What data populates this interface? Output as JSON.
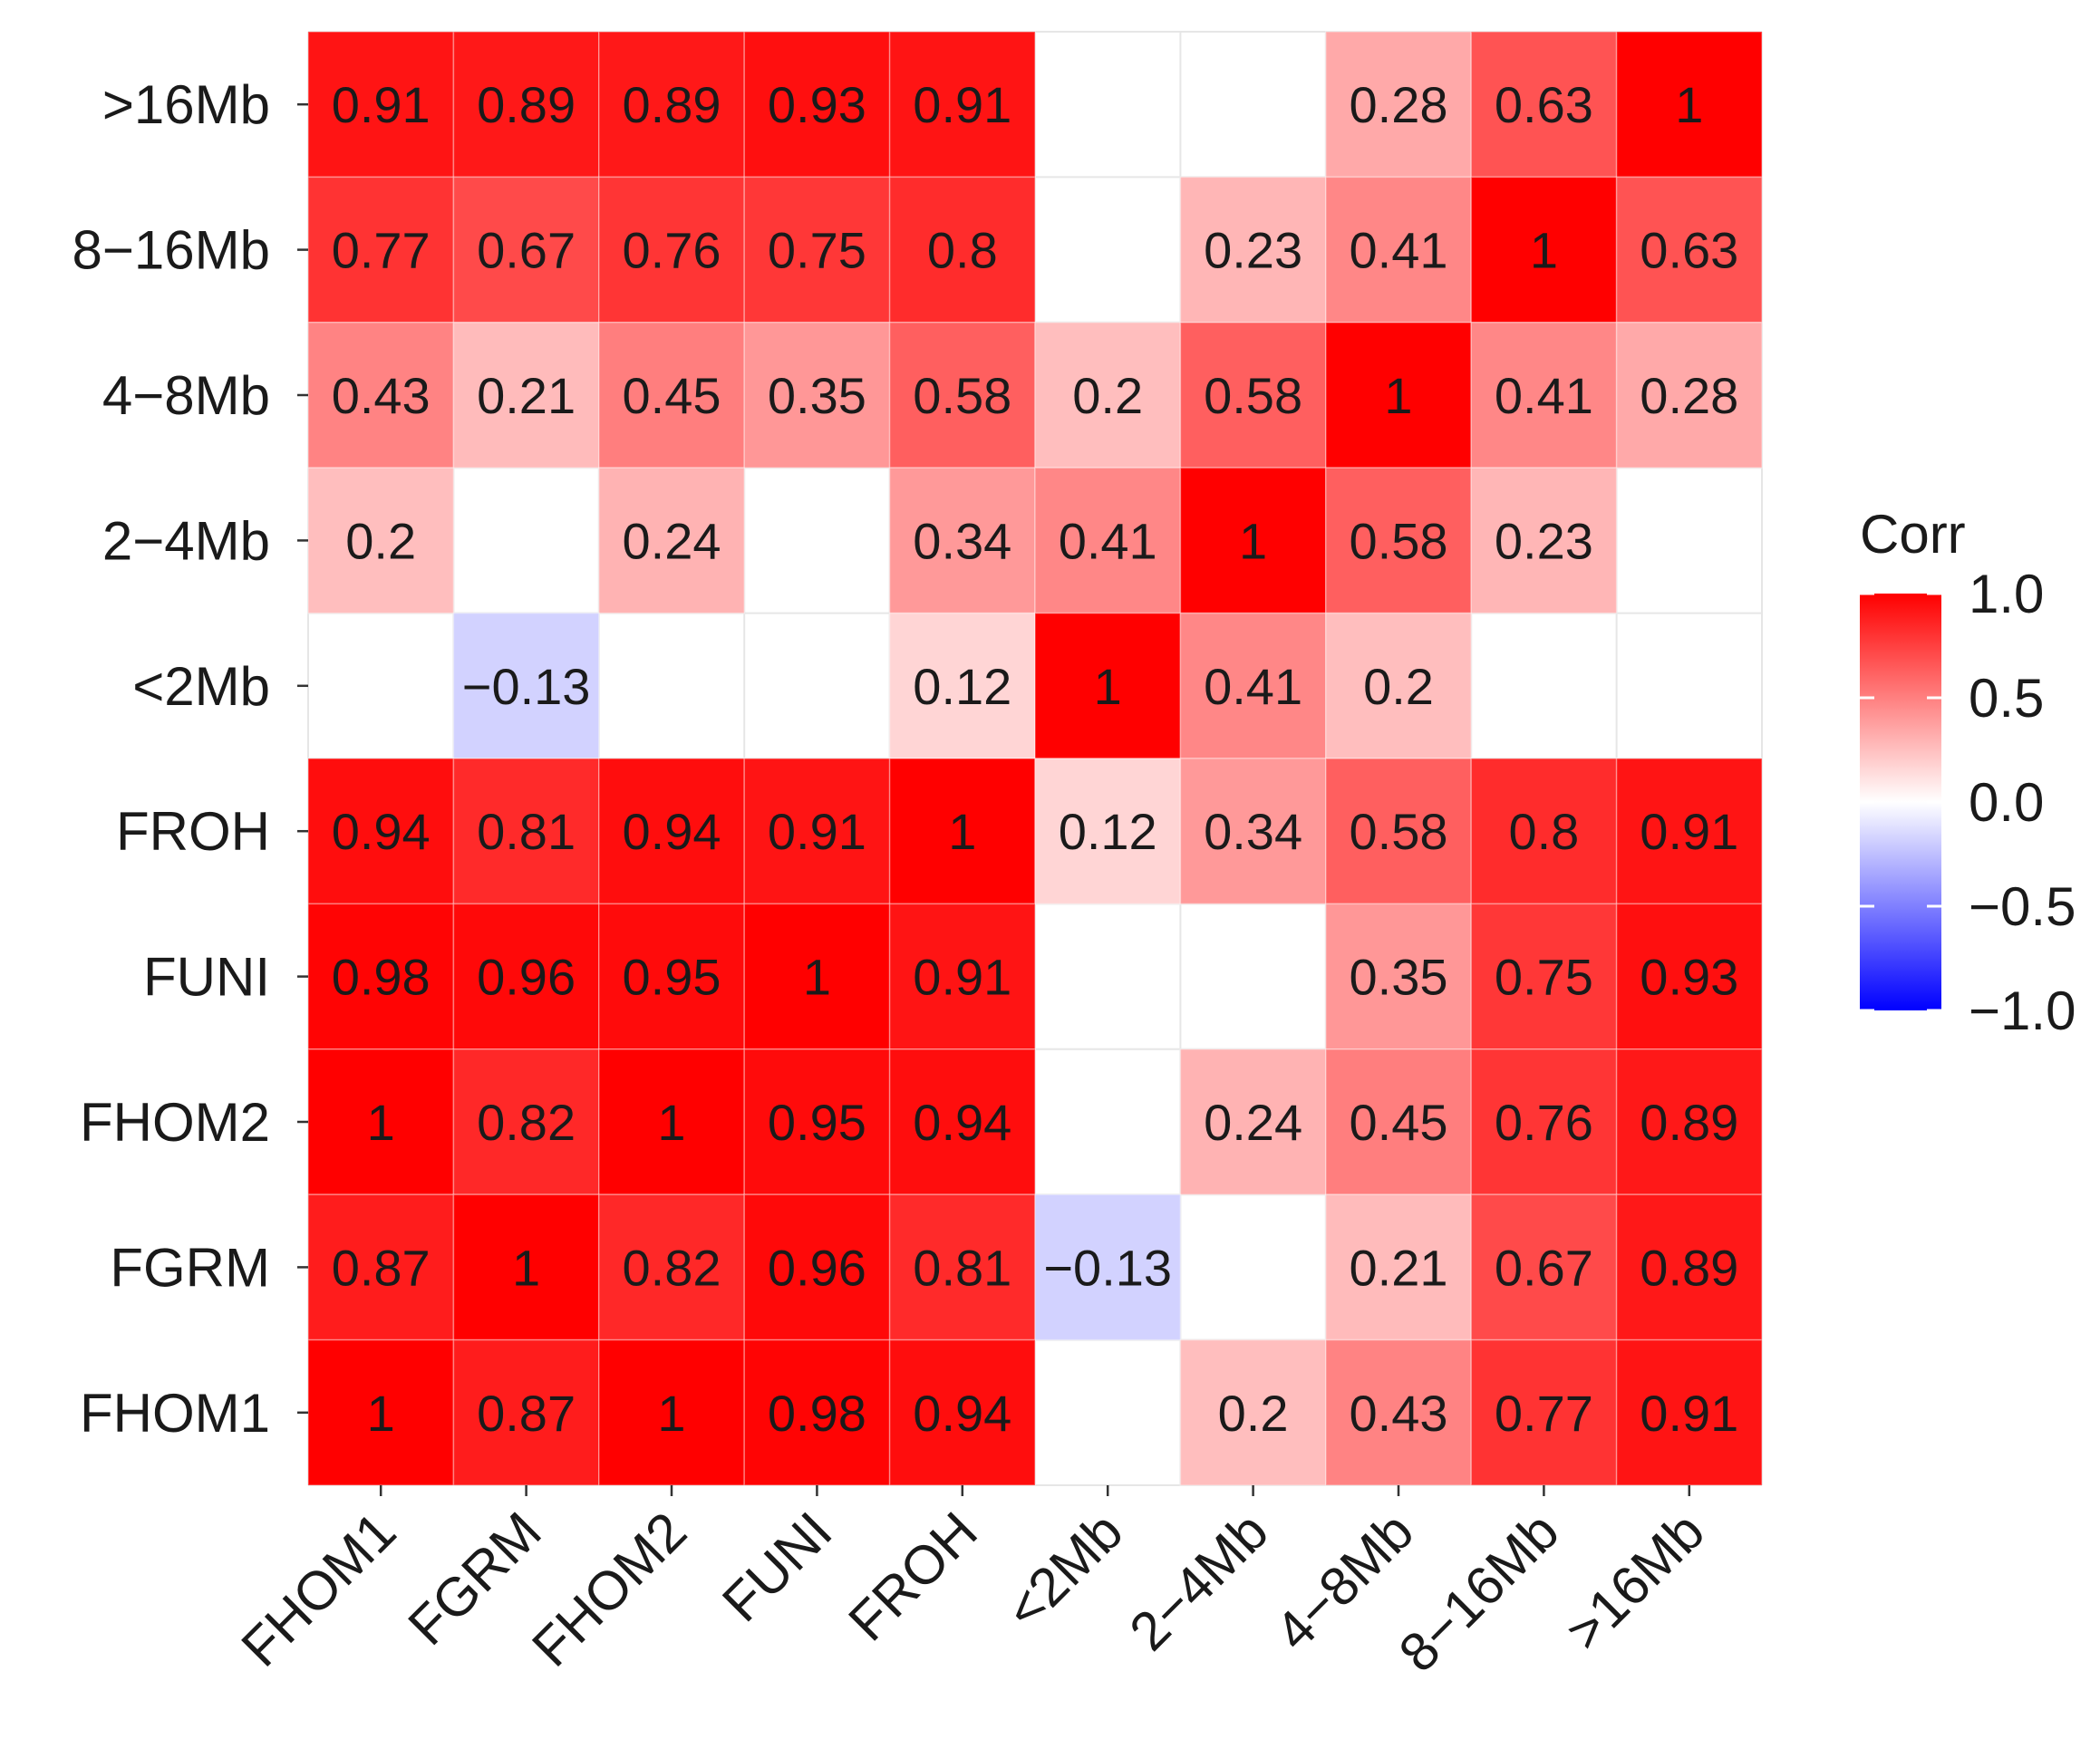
{
  "chart_data": {
    "type": "heatmap",
    "title": "",
    "xlabel": "",
    "ylabel": "",
    "x_categories": [
      "FHOM1",
      "FGRM",
      "FHOM2",
      "FUNI",
      "FROH",
      "<2Mb",
      "2−4Mb",
      "4−8Mb",
      "8−16Mb",
      ">16Mb"
    ],
    "y_categories_top_to_bottom": [
      ">16Mb",
      "8−16Mb",
      "4−8Mb",
      "2−4Mb",
      "<2Mb",
      "FROH",
      "FUNI",
      "FHOM2",
      "FGRM",
      "FHOM1"
    ],
    "values": [
      [
        0.91,
        0.89,
        0.89,
        0.93,
        0.91,
        null,
        null,
        0.28,
        0.63,
        1
      ],
      [
        0.77,
        0.67,
        0.76,
        0.75,
        0.8,
        null,
        0.23,
        0.41,
        1,
        0.63
      ],
      [
        0.43,
        0.21,
        0.45,
        0.35,
        0.58,
        0.2,
        0.58,
        1,
        0.41,
        0.28
      ],
      [
        0.2,
        null,
        0.24,
        null,
        0.34,
        0.41,
        1,
        0.58,
        0.23,
        null
      ],
      [
        null,
        -0.13,
        null,
        null,
        0.12,
        1,
        0.41,
        0.2,
        null,
        null
      ],
      [
        0.94,
        0.81,
        0.94,
        0.91,
        1,
        0.12,
        0.34,
        0.58,
        0.8,
        0.91
      ],
      [
        0.98,
        0.96,
        0.95,
        1,
        0.91,
        null,
        null,
        0.35,
        0.75,
        0.93
      ],
      [
        1,
        0.82,
        1,
        0.95,
        0.94,
        null,
        0.24,
        0.45,
        0.76,
        0.89
      ],
      [
        0.87,
        1,
        0.82,
        0.96,
        0.81,
        -0.13,
        null,
        0.21,
        0.67,
        0.89
      ],
      [
        1,
        0.87,
        1,
        0.98,
        0.94,
        null,
        0.2,
        0.43,
        0.77,
        0.91
      ]
    ],
    "value_labels": [
      [
        "0.91",
        "0.89",
        "0.89",
        "0.93",
        "0.91",
        "",
        "",
        "0.28",
        "0.63",
        "1"
      ],
      [
        "0.77",
        "0.67",
        "0.76",
        "0.75",
        "0.8",
        "",
        "0.23",
        "0.41",
        "1",
        "0.63"
      ],
      [
        "0.43",
        "0.21",
        "0.45",
        "0.35",
        "0.58",
        "0.2",
        "0.58",
        "1",
        "0.41",
        "0.28"
      ],
      [
        "0.2",
        "",
        "0.24",
        "",
        "0.34",
        "0.41",
        "1",
        "0.58",
        "0.23",
        ""
      ],
      [
        "",
        "−0.13",
        "",
        "",
        "0.12",
        "1",
        "0.41",
        "0.2",
        "",
        ""
      ],
      [
        "0.94",
        "0.81",
        "0.94",
        "0.91",
        "1",
        "0.12",
        "0.34",
        "0.58",
        "0.8",
        "0.91"
      ],
      [
        "0.98",
        "0.96",
        "0.95",
        "1",
        "0.91",
        "",
        "",
        "0.35",
        "0.75",
        "0.93"
      ],
      [
        "1",
        "0.82",
        "1",
        "0.95",
        "0.94",
        "",
        "0.24",
        "0.45",
        "0.76",
        "0.89"
      ],
      [
        "0.87",
        "1",
        "0.82",
        "0.96",
        "0.81",
        "−0.13",
        "",
        "0.21",
        "0.67",
        "0.89"
      ],
      [
        "1",
        "0.87",
        "1",
        "0.98",
        "0.94",
        "",
        "0.2",
        "0.43",
        "0.77",
        "0.91"
      ]
    ],
    "blank_cells_note": "non-significant correlations shown as white, unlabeled",
    "legend": {
      "title": "Corr",
      "range": [
        -1,
        1
      ],
      "ticks": [
        1.0,
        0.5,
        0.0,
        -0.5,
        -1.0
      ],
      "tick_labels": [
        "1.0",
        "0.5",
        "0.0",
        "−0.5",
        "−1.0"
      ],
      "placement": "right"
    },
    "colors": {
      "high": "#ff0000",
      "mid": "#ffffff",
      "low": "#0000ff",
      "grid": "#e6e6e6",
      "text": "#1a1a1a"
    }
  }
}
